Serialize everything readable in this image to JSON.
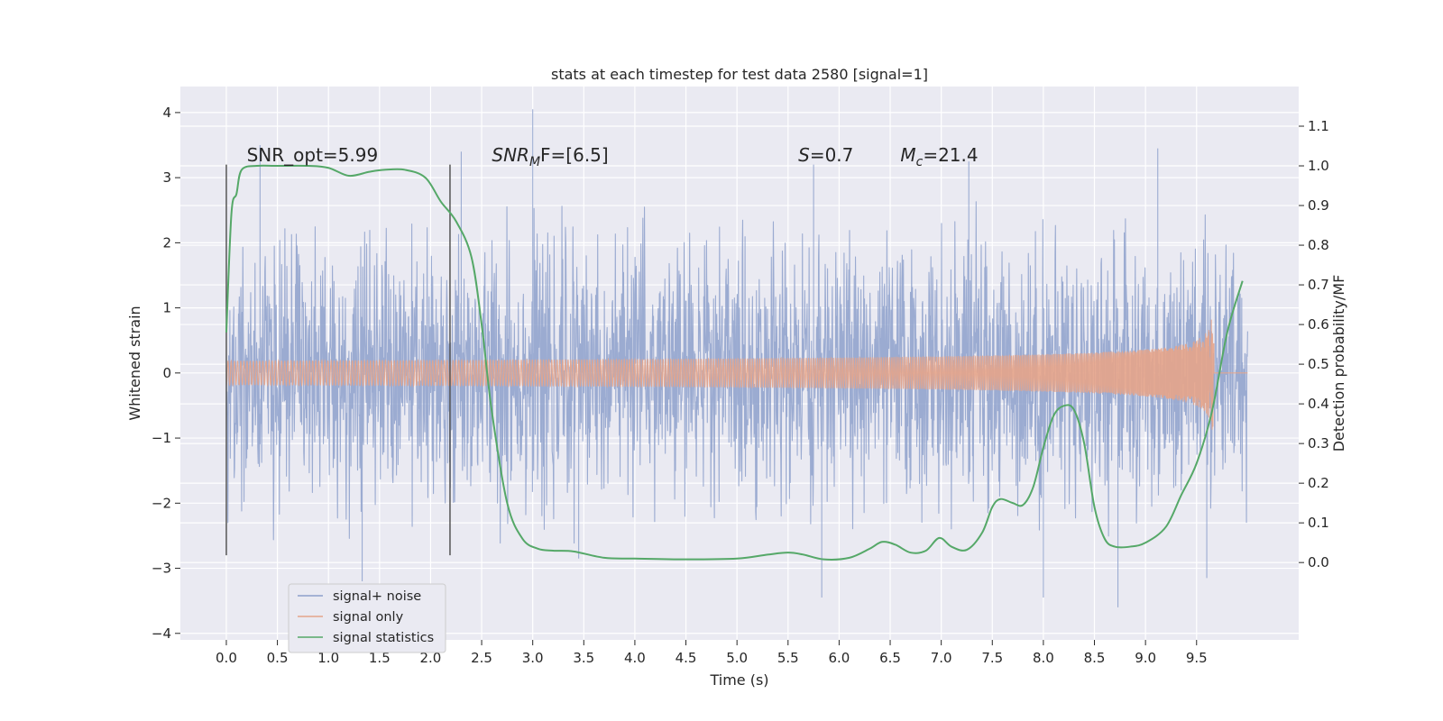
{
  "chart_data": {
    "type": "line",
    "title": "stats at each timestep for test data 2580 [signal=1]",
    "xlabel": "Time (s)",
    "ylabel": "Whitened strain",
    "y2label": "Detection probability/MF",
    "xlim": [
      -0.45,
      10.5
    ],
    "ylim": [
      -4.1,
      4.4
    ],
    "y2lim": [
      -0.195,
      1.2
    ],
    "x_ticks": [
      0.0,
      0.5,
      1.0,
      1.5,
      2.0,
      2.5,
      3.0,
      3.5,
      4.0,
      4.5,
      5.0,
      5.5,
      6.0,
      6.5,
      7.0,
      7.5,
      8.0,
      8.5,
      9.0,
      9.5
    ],
    "x_tick_labels": [
      "0.0",
      "0.5",
      "1.0",
      "1.5",
      "2.0",
      "2.5",
      "3.0",
      "3.5",
      "4.0",
      "4.5",
      "5.0",
      "5.5",
      "6.0",
      "6.5",
      "7.0",
      "7.5",
      "8.0",
      "8.5",
      "9.0",
      "9.5"
    ],
    "y_ticks": [
      -4,
      -3,
      -2,
      -1,
      0,
      1,
      2,
      3,
      4
    ],
    "y_tick_labels": [
      "−4",
      "−3",
      "−2",
      "−1",
      "0",
      "1",
      "2",
      "3",
      "4"
    ],
    "y2_ticks": [
      0.0,
      0.1,
      0.2,
      0.3,
      0.4,
      0.5,
      0.6,
      0.7,
      0.8,
      0.9,
      1.0,
      1.1
    ],
    "y2_tick_labels": [
      "0.0",
      "0.1",
      "0.2",
      "0.3",
      "0.4",
      "0.5",
      "0.6",
      "0.7",
      "0.8",
      "0.9",
      "1.0",
      "1.1"
    ],
    "grid": true,
    "legend_position": "lower-left",
    "series": [
      {
        "name": "signal+ noise",
        "color": "#8da0cb",
        "axis": "left",
        "style": "dense noise",
        "x_range": [
          0.0,
          10.0
        ],
        "typical_abs_max": 2.3,
        "extreme_peaks": [
          [
            0.33,
            3.5
          ],
          [
            1.33,
            -3.2
          ],
          [
            2.3,
            3.4
          ],
          [
            3.0,
            4.05
          ],
          [
            3.45,
            -2.85
          ],
          [
            5.75,
            3.2
          ],
          [
            5.83,
            -3.45
          ],
          [
            7.27,
            3.25
          ],
          [
            8.0,
            -3.45
          ],
          [
            8.73,
            -3.6
          ],
          [
            9.12,
            3.45
          ],
          [
            9.6,
            -3.15
          ]
        ]
      },
      {
        "name": "signal only",
        "color": "#e5a48a",
        "axis": "left",
        "style": "chirp",
        "x_range": [
          0.0,
          9.67
        ],
        "merger_time": 9.67,
        "peak_amplitude": 1.3
      },
      {
        "name": "signal statistics",
        "color": "#55a868",
        "axis": "right",
        "x": [
          0.0,
          0.05,
          0.1,
          0.15,
          0.3,
          0.5,
          0.8,
          1.0,
          1.2,
          1.4,
          1.55,
          1.75,
          1.95,
          2.1,
          2.25,
          2.4,
          2.5,
          2.6,
          2.75,
          2.9,
          3.05,
          3.2,
          3.4,
          3.7,
          4.0,
          4.5,
          5.0,
          5.3,
          5.5,
          5.65,
          5.85,
          6.1,
          6.3,
          6.42,
          6.55,
          6.7,
          6.85,
          6.98,
          7.1,
          7.25,
          7.4,
          7.5,
          7.58,
          7.7,
          7.8,
          7.9,
          8.0,
          8.1,
          8.2,
          8.3,
          8.4,
          8.5,
          8.6,
          8.7,
          8.85,
          9.0,
          9.2,
          9.35,
          9.5,
          9.65,
          9.8,
          9.95
        ],
        "y": [
          0.58,
          0.88,
          0.93,
          0.99,
          1.0,
          1.0,
          1.0,
          0.995,
          0.975,
          0.985,
          0.99,
          0.99,
          0.97,
          0.91,
          0.86,
          0.77,
          0.6,
          0.38,
          0.15,
          0.06,
          0.035,
          0.03,
          0.028,
          0.012,
          0.01,
          0.008,
          0.01,
          0.02,
          0.025,
          0.02,
          0.008,
          0.012,
          0.035,
          0.052,
          0.045,
          0.025,
          0.03,
          0.062,
          0.04,
          0.032,
          0.075,
          0.14,
          0.16,
          0.15,
          0.145,
          0.19,
          0.29,
          0.37,
          0.395,
          0.385,
          0.3,
          0.14,
          0.06,
          0.04,
          0.04,
          0.05,
          0.09,
          0.17,
          0.25,
          0.38,
          0.58,
          0.71
        ]
      }
    ],
    "vertical_lines": [
      {
        "x": 0.0,
        "y_range": [
          -2.8,
          3.2
        ],
        "color": "#555555"
      },
      {
        "x": 2.19,
        "y_range": [
          -2.8,
          3.2
        ],
        "color": "#555555"
      }
    ],
    "annotations": [
      {
        "id": "snr-opt",
        "x": 0.2,
        "y": 3.25,
        "prefix": "SNR_opt=5.99",
        "sub": "",
        "suffix": ""
      },
      {
        "id": "snr-mf",
        "x": 2.6,
        "y": 3.25,
        "prefix": "SNR",
        "sub": "M",
        "suffix": "F=[6.5]",
        "italic_prefix": true
      },
      {
        "id": "s-value",
        "x": 5.6,
        "y": 3.25,
        "prefix": "S",
        "sub": "",
        "suffix": "=0.7",
        "italic_prefix": true
      },
      {
        "id": "mc-value",
        "x": 6.6,
        "y": 3.25,
        "prefix": "M",
        "sub": "c",
        "suffix": "=21.4",
        "italic_prefix": true
      }
    ]
  }
}
